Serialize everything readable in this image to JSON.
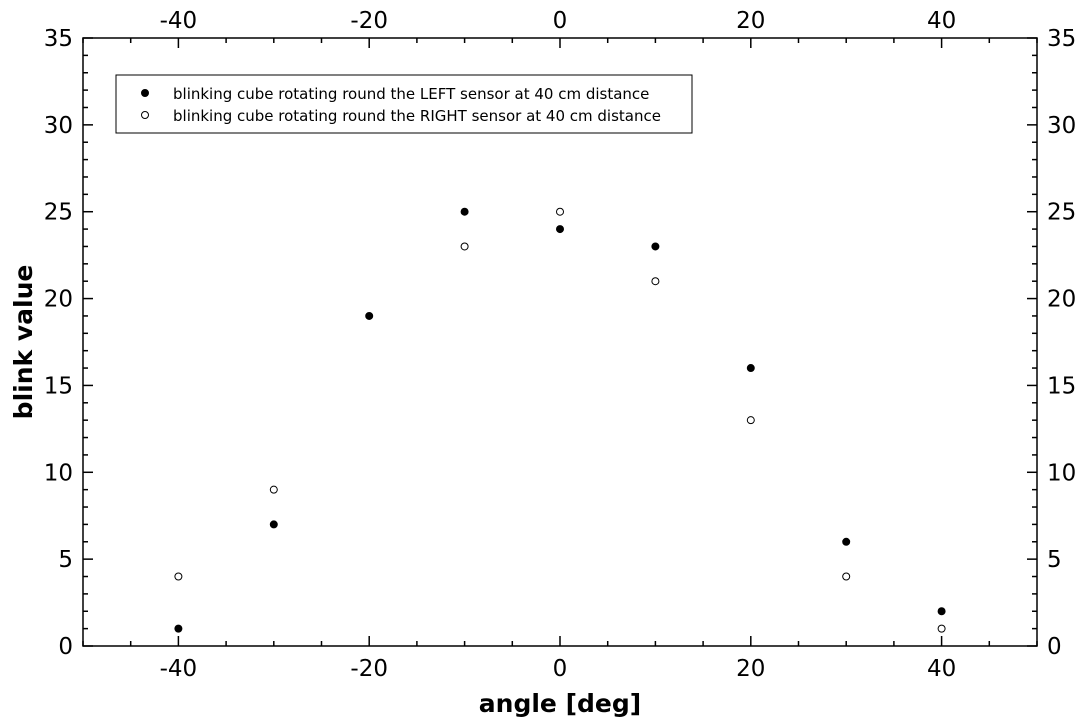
{
  "chart_data": {
    "type": "scatter",
    "title": "",
    "xlabel": "angle [deg]",
    "ylabel": "blink value",
    "xlim": [
      -50,
      50
    ],
    "ylim": [
      0,
      35
    ],
    "x_ticks": [
      "-40",
      "-20",
      "0",
      "20",
      "40"
    ],
    "y_ticks": [
      "0",
      "5",
      "10",
      "15",
      "20",
      "25",
      "30",
      "35"
    ],
    "top_axis_mirrors_bottom": true,
    "right_axis_mirrors_left": true,
    "grid": false,
    "legend_position": "top-left",
    "series": [
      {
        "name": "blinking cube rotating round the LEFT sensor at 40 cm distance",
        "marker": "filled-circle",
        "color": "#000000",
        "x": [
          -40,
          -30,
          -20,
          -10,
          0,
          10,
          20,
          30,
          40
        ],
        "y": [
          1,
          7,
          19,
          25,
          24,
          23,
          16,
          6,
          2
        ]
      },
      {
        "name": "blinking cube rotating round the RIGHT sensor at 40 cm distance",
        "marker": "open-circle",
        "color": "#000000",
        "x": [
          -40,
          -30,
          -10,
          0,
          10,
          20,
          30,
          40
        ],
        "y": [
          4,
          9,
          23,
          25,
          21,
          13,
          4,
          1
        ]
      }
    ]
  }
}
